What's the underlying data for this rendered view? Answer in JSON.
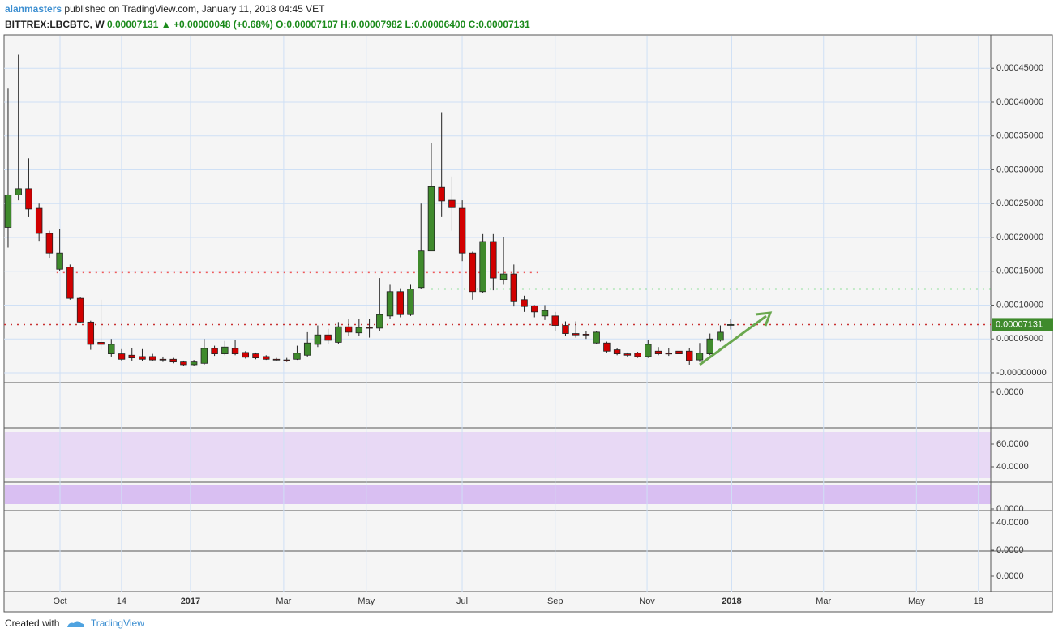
{
  "header": {
    "author": "alanmasters",
    "published": "published on TradingView.com, January 11, 2018 04:45 VET",
    "symbol": "BITTREX:LBCBTC, W",
    "close": "0.00007131",
    "change": "▲ +0.00000048 (+0.68%)",
    "ohlc": "O:0.00007107 H:0.00007982 L:0.00006400 C:0.00007131"
  },
  "footer": {
    "created": "Created with",
    "brand": "TradingView"
  },
  "chart_data": {
    "type": "candlestick",
    "up_color": "#3f8a2c",
    "down_color": "#d10000",
    "grid": true,
    "x": [
      0,
      1,
      2,
      3,
      4,
      5,
      6,
      7,
      8,
      9,
      10,
      11,
      12,
      13,
      14,
      15,
      16,
      17,
      18,
      19,
      20,
      21,
      22,
      23,
      24,
      25,
      26,
      27,
      28,
      29,
      30,
      31,
      32,
      33,
      34,
      35,
      36,
      37,
      38,
      39,
      40,
      41,
      42,
      43,
      44,
      45,
      46,
      47,
      48,
      49,
      50,
      51,
      52,
      53,
      54,
      55,
      56,
      57,
      58,
      59,
      60,
      61,
      62,
      63,
      64,
      65,
      66,
      67,
      68,
      69,
      70
    ],
    "open": [
      0.000215,
      0.000263,
      0.000272,
      0.000243,
      0.000206,
      0.000153,
      0.000156,
      0.00011,
      7.5e-05,
      4.5e-05,
      2.8e-05,
      2.8e-05,
      2.6e-05,
      2.4e-05,
      2.4e-05,
      2e-05,
      2e-05,
      1.6e-05,
      1.2e-05,
      1.4e-05,
      3.6e-05,
      2.8e-05,
      3.6e-05,
      3e-05,
      2.8e-05,
      2.4e-05,
      2e-05,
      1.9e-05,
      2e-05,
      2.6e-05,
      4.2e-05,
      5.6e-05,
      4.5e-05,
      6.8e-05,
      5.9e-05,
      6.7e-05,
      6.6e-05,
      8.4e-05,
      0.00012,
      8.6e-05,
      0.000126,
      0.00018,
      0.000274,
      0.000255,
      0.000243,
      0.000177,
      0.00012,
      0.000194,
      0.000138,
      0.000146,
      0.000108,
      9.9e-05,
      8.4e-05,
      8.4e-05,
      7e-05,
      5.8e-05,
      5.7e-05,
      4.4e-05,
      4.4e-05,
      3.4e-05,
      2.8e-05,
      2.9e-05,
      2.4e-05,
      3.2e-05,
      2.9e-05,
      3.2e-05,
      3.2e-05,
      1.9e-05,
      2.8e-05,
      4.8e-05,
      7.107e-05
    ],
    "high": [
      0.00042,
      0.00047,
      0.000317,
      0.00025,
      0.00021,
      0.000213,
      0.00016,
      0.000112,
      7.7e-05,
      0.000108,
      5e-05,
      3.5e-05,
      3.6e-05,
      3.5e-05,
      2.8e-05,
      2.4e-05,
      2.2e-05,
      1.8e-05,
      1.9e-05,
      5e-05,
      4e-05,
      4.7e-05,
      4.8e-05,
      3.2e-05,
      3e-05,
      2.6e-05,
      2.2e-05,
      2.2e-05,
      4e-05,
      6e-05,
      7e-05,
      6.5e-05,
      7.5e-05,
      8e-05,
      8e-05,
      8e-05,
      0.00014,
      0.00013,
      0.000125,
      0.00013,
      0.00025,
      0.00034,
      0.000385,
      0.00029,
      0.000255,
      0.000179,
      0.000205,
      0.000205,
      0.0002,
      0.00016,
      0.000114,
      0.0001,
      0.0001,
      9e-05,
      7.6e-05,
      7.6e-05,
      6.2e-05,
      6.2e-05,
      4.6e-05,
      3.6e-05,
      3e-05,
      3.1e-05,
      4.8e-05,
      3.8e-05,
      3.6e-05,
      3.8e-05,
      3.6e-05,
      4.4e-05,
      5.8e-05,
      7e-05,
      7.982e-05
    ],
    "low": [
      0.000185,
      0.000255,
      0.00023,
      0.000195,
      0.00017,
      0.00015,
      0.000108,
      7.3e-05,
      3.4e-05,
      3.4e-05,
      2.4e-05,
      1.8e-05,
      1.8e-05,
      1.7e-05,
      1.7e-05,
      1.6e-05,
      1.4e-05,
      1e-05,
      1e-05,
      1.2e-05,
      2.5e-05,
      2.6e-05,
      2.6e-05,
      2.1e-05,
      2e-05,
      1.9e-05,
      1.7e-05,
      1.6e-05,
      1.9e-05,
      2.4e-05,
      3.8e-05,
      4.3e-05,
      4.2e-05,
      5.5e-05,
      5.4e-05,
      5.2e-05,
      6.2e-05,
      8e-05,
      8.2e-05,
      8.4e-05,
      0.000124,
      0.00018,
      0.00023,
      0.00021,
      0.000165,
      0.000108,
      0.000118,
      0.000122,
      0.00013,
      9.8e-05,
      9e-05,
      8.2e-05,
      7.8e-05,
      6.2e-05,
      5.4e-05,
      5.2e-05,
      5e-05,
      4.2e-05,
      2.9e-05,
      2.6e-05,
      2.4e-05,
      2.2e-05,
      2.2e-05,
      2.6e-05,
      2.5e-05,
      2.5e-05,
      1.2e-05,
      1.6e-05,
      2.6e-05,
      4.6e-05,
      6.4e-05
    ],
    "close": [
      0.000263,
      0.000272,
      0.000242,
      0.000206,
      0.000177,
      0.000177,
      0.00011,
      7.5e-05,
      4.2e-05,
      4.2e-05,
      4.2e-05,
      2e-05,
      2.2e-05,
      2e-05,
      1.9e-05,
      1.9e-05,
      1.6e-05,
      1.2e-05,
      1.6e-05,
      3.6e-05,
      2.8e-05,
      3.8e-05,
      2.8e-05,
      2.3e-05,
      2.2e-05,
      2e-05,
      1.9e-05,
      1.8e-05,
      2.9e-05,
      4.4e-05,
      5.6e-05,
      4.8e-05,
      6.8e-05,
      6e-05,
      6.7e-05,
      6.6e-05,
      8.6e-05,
      0.00012,
      8.6e-05,
      0.000124,
      0.00018,
      0.000275,
      0.000254,
      0.000244,
      0.000177,
      0.00012,
      0.000194,
      0.00014,
      0.000146,
      0.000105,
      9.8e-05,
      9e-05,
      9.2e-05,
      7e-05,
      5.8e-05,
      5.6e-05,
      5.6e-05,
      6e-05,
      3.2e-05,
      2.8e-05,
      2.6e-05,
      2.4e-05,
      4.2e-05,
      2.8e-05,
      2.8e-05,
      2.8e-05,
      1.8e-05,
      2.9e-05,
      5e-05,
      6e-05,
      7.131e-05
    ],
    "levels": [
      {
        "value": 0.000148,
        "color": "#f05a5a",
        "from": 4.7,
        "to": 51.3
      },
      {
        "value": 0.000124,
        "color": "#2ecc40",
        "from": 41,
        "to": 95.2
      },
      {
        "value": 7.131e-05,
        "color": "#c83232",
        "from": -0.39,
        "to": 95.2
      }
    ],
    "xlim": [
      -0.39,
      95.2
    ],
    "xticks": [
      {
        "value": 5.03,
        "label": "Oct"
      },
      {
        "value": 10.99,
        "label": "14"
      },
      {
        "value": 17.67,
        "label": "2017"
      },
      {
        "value": 26.7,
        "label": "Mar"
      },
      {
        "value": 34.7,
        "label": "May"
      },
      {
        "value": 43.99,
        "label": "Jul"
      },
      {
        "value": 53.0,
        "label": "Sep"
      },
      {
        "value": 61.9,
        "label": "Nov"
      },
      {
        "value": 70.1,
        "label": "2018"
      },
      {
        "value": 79.0,
        "label": "Mar"
      },
      {
        "value": 88.0,
        "label": "May"
      },
      {
        "value": 94.0,
        "label": "18"
      }
    ],
    "ylim": [
      -1.2e-05,
      0.000497
    ],
    "yticks": [
      {
        "value": 0.00045,
        "label": "0.00045000"
      },
      {
        "value": 0.0004,
        "label": "0.00040000"
      },
      {
        "value": 0.00035,
        "label": "0.00035000"
      },
      {
        "value": 0.0003,
        "label": "0.00030000"
      },
      {
        "value": 0.00025,
        "label": "0.00025000"
      },
      {
        "value": 0.0002,
        "label": "0.00020000"
      },
      {
        "value": 0.00015,
        "label": "0.00015000"
      },
      {
        "value": 0.0001,
        "label": "0.00010000"
      },
      {
        "value": 5e-05,
        "label": "0.00005000"
      },
      {
        "value": 0,
        "label": "-0.00000000"
      }
    ]
  },
  "panes": [
    [
      "0.0000"
    ],
    [
      "60.0000",
      "40.0000"
    ],
    [
      "0.0000"
    ],
    [
      "40.0000",
      "0.0000"
    ],
    [
      "0.0000"
    ]
  ]
}
